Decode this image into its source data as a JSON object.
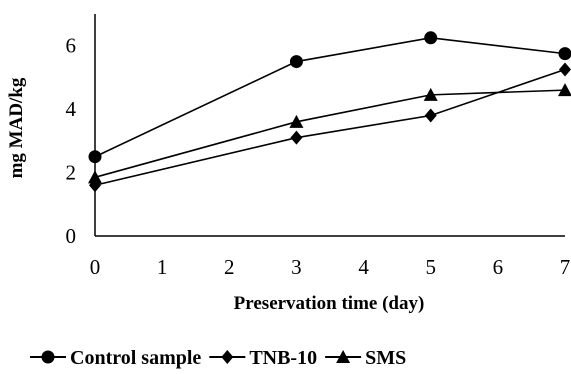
{
  "chart_data": {
    "type": "line",
    "title": "",
    "xlabel": "Preservation time (day)",
    "ylabel": "mg MAD/kg",
    "xlim": [
      0,
      7
    ],
    "ylim": [
      0,
      7
    ],
    "xticks": [
      0,
      1,
      2,
      3,
      4,
      5,
      6,
      7
    ],
    "yticks": [
      0,
      2,
      4,
      6
    ],
    "grid": false,
    "legend_position": "bottom",
    "x": [
      0,
      3,
      5,
      7
    ],
    "series": [
      {
        "name": "Control sample",
        "marker": "circle",
        "values": [
          2.5,
          5.5,
          6.25,
          5.75
        ]
      },
      {
        "name": "TNB-10",
        "marker": "diamond",
        "values": [
          1.6,
          3.1,
          3.8,
          5.25
        ]
      },
      {
        "name": "SMS",
        "marker": "triangle",
        "values": [
          1.85,
          3.6,
          4.45,
          4.6
        ]
      }
    ],
    "line_color": "#000000"
  }
}
